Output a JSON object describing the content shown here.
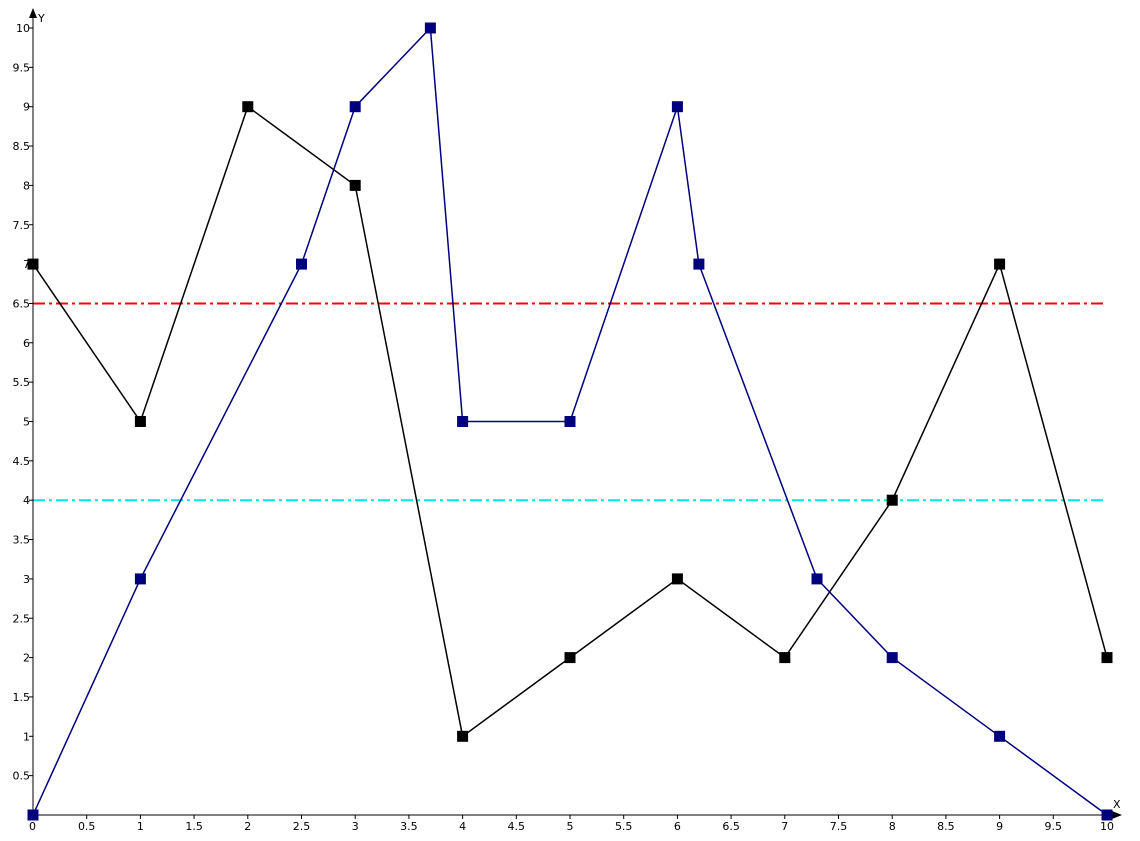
{
  "chart_data": {
    "type": "line",
    "xlabel": "X",
    "ylabel": "Y",
    "xlim": [
      0,
      10
    ],
    "ylim": [
      0,
      10
    ],
    "x_ticks": [
      0,
      0.5,
      1,
      1.5,
      2,
      2.5,
      3,
      3.5,
      4,
      4.5,
      5,
      5.5,
      6,
      6.5,
      7,
      7.5,
      8,
      8.5,
      9,
      9.5,
      10
    ],
    "y_ticks": [
      0.5,
      1,
      1.5,
      2,
      2.5,
      3,
      3.5,
      4,
      4.5,
      5,
      5.5,
      6,
      6.5,
      7,
      7.5,
      8,
      8.5,
      9,
      9.5,
      10
    ],
    "grid": false,
    "series": [
      {
        "color": "#000000",
        "x": [
          0,
          1,
          2,
          3,
          4,
          5,
          6,
          7,
          8,
          9,
          10
        ],
        "y": [
          7,
          5,
          9,
          8,
          1,
          2,
          3,
          2,
          4,
          7,
          2
        ]
      },
      {
        "color": "#00007f",
        "x": [
          0,
          1,
          2.5,
          3,
          3.7,
          4,
          5,
          6,
          6.2,
          7.3,
          8,
          9,
          10
        ],
        "y": [
          0,
          3,
          7,
          9,
          10,
          5,
          5,
          9,
          7,
          3,
          2,
          1,
          0
        ]
      }
    ],
    "reference_lines": [
      {
        "y": 6.5,
        "color": "#ff0000",
        "style": "dash-dot"
      },
      {
        "y": 4,
        "color": "#00e5e5",
        "style": "dash-dot"
      }
    ]
  }
}
